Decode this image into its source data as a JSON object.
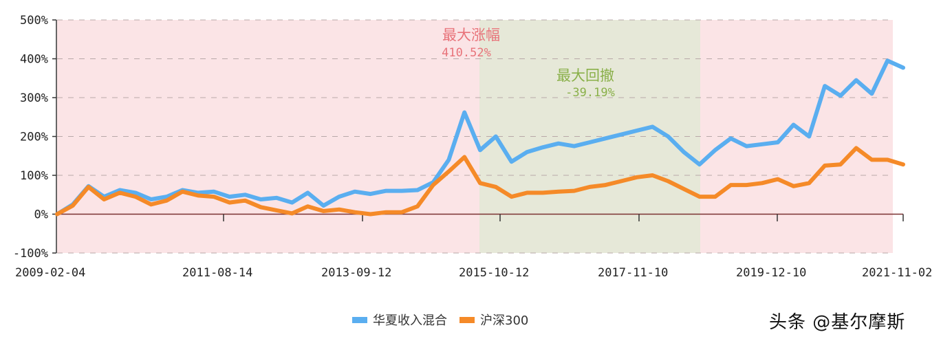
{
  "chart_data": {
    "type": "line",
    "title": "",
    "xlabel": "",
    "ylabel": "",
    "ylim": [
      -100,
      500
    ],
    "yticks": [
      "500%",
      "400%",
      "300%",
      "200%",
      "100%",
      "0%",
      "-100%"
    ],
    "ytick_values": [
      500,
      400,
      300,
      200,
      100,
      0,
      -100
    ],
    "xticks": [
      "2009-02-04",
      "2011-08-14",
      "2013-09-12",
      "2015-10-12",
      "2017-11-10",
      "2019-12-10",
      "2021-11-02"
    ],
    "grid": "horizontal-dashed",
    "legend_position": "bottom",
    "annotations": [
      {
        "label": "最大涨幅",
        "value": "410.52%",
        "color": "#e8737a"
      },
      {
        "label": "最大回撤",
        "value": "-39.19%",
        "color": "#8ab04a"
      }
    ],
    "regions": [
      {
        "name": "max-rise-period",
        "from": "2009-02-04",
        "to": "2021-09",
        "color": "#fbe4e6"
      },
      {
        "name": "max-drawdown-period",
        "from": "2015-06",
        "to": "2018-10",
        "color": "#e6e8d8"
      }
    ],
    "x": [
      "2009-02",
      "2009-05",
      "2009-08",
      "2009-11",
      "2010-02",
      "2010-05",
      "2010-08",
      "2010-11",
      "2011-02",
      "2011-05",
      "2011-08",
      "2011-11",
      "2012-02",
      "2012-05",
      "2012-08",
      "2012-11",
      "2013-02",
      "2013-05",
      "2013-08",
      "2013-11",
      "2014-02",
      "2014-05",
      "2014-08",
      "2014-11",
      "2015-02",
      "2015-04",
      "2015-06",
      "2015-08",
      "2015-10",
      "2015-12",
      "2016-02",
      "2016-05",
      "2016-08",
      "2016-11",
      "2017-02",
      "2017-05",
      "2017-08",
      "2017-11",
      "2018-02",
      "2018-05",
      "2018-08",
      "2018-10",
      "2019-01",
      "2019-04",
      "2019-07",
      "2019-10",
      "2020-01",
      "2020-04",
      "2020-07",
      "2020-10",
      "2021-01",
      "2021-04",
      "2021-07",
      "2021-09",
      "2021-11"
    ],
    "series": [
      {
        "name": "华夏收入混合",
        "color": "#5aaef0",
        "values": [
          0,
          25,
          72,
          45,
          62,
          55,
          38,
          45,
          62,
          55,
          58,
          45,
          50,
          38,
          42,
          30,
          55,
          22,
          45,
          58,
          52,
          60,
          60,
          62,
          82,
          140,
          262,
          165,
          200,
          135,
          160,
          172,
          182,
          175,
          185,
          195,
          205,
          215,
          225,
          200,
          160,
          128,
          165,
          195,
          175,
          180,
          185,
          230,
          200,
          330,
          305,
          345,
          310,
          395,
          377
        ]
      },
      {
        "name": "沪深300",
        "color": "#f58a28",
        "values": [
          0,
          22,
          70,
          38,
          55,
          45,
          25,
          35,
          58,
          48,
          45,
          30,
          35,
          18,
          10,
          2,
          20,
          8,
          12,
          5,
          0,
          5,
          5,
          20,
          75,
          110,
          147,
          80,
          70,
          45,
          55,
          55,
          58,
          60,
          70,
          75,
          85,
          95,
          100,
          85,
          65,
          45,
          45,
          75,
          75,
          80,
          90,
          72,
          80,
          125,
          128,
          170,
          140,
          140,
          128
        ]
      }
    ]
  },
  "legend": {
    "items": [
      {
        "label": "华夏收入混合",
        "color": "#5aaef0"
      },
      {
        "label": "沪深300",
        "color": "#f58a28"
      }
    ]
  },
  "annotations": {
    "rise_label": "最大涨幅",
    "rise_value": "410.52%",
    "drawdown_label": "最大回撤",
    "drawdown_value": "-39.19%"
  },
  "watermark": "头条 @基尔摩斯"
}
